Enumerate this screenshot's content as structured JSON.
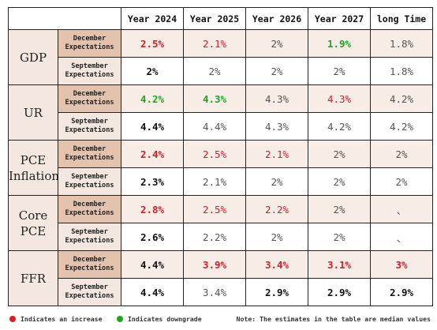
{
  "chart_data": {
    "type": "table",
    "columns": [
      "Year 2024",
      "Year 2025",
      "Year 2026",
      "Year 2027",
      "long Time"
    ],
    "groups": [
      {
        "name": "GDP",
        "rows": [
          {
            "label": "December Expectations",
            "kind": "dec",
            "cells": [
              {
                "text": "2.5%",
                "value": 2.5,
                "color": "red",
                "bold": true
              },
              {
                "text": "2.1%",
                "value": 2.1,
                "color": "red",
                "bold": false
              },
              {
                "text": "2%",
                "value": 2.0,
                "color": "gray",
                "bold": false
              },
              {
                "text": "1.9%",
                "value": 1.9,
                "color": "green",
                "bold": true
              },
              {
                "text": "1.8%",
                "value": 1.8,
                "color": "gray",
                "bold": false
              }
            ]
          },
          {
            "label": "September Expectations",
            "kind": "sep",
            "cells": [
              {
                "text": "2%",
                "value": 2.0,
                "color": "black",
                "bold": true
              },
              {
                "text": "2%",
                "value": 2.0,
                "color": "gray",
                "bold": false
              },
              {
                "text": "2%",
                "value": 2.0,
                "color": "gray",
                "bold": false
              },
              {
                "text": "2%",
                "value": 2.0,
                "color": "gray",
                "bold": false
              },
              {
                "text": "1.8%",
                "value": 1.8,
                "color": "gray",
                "bold": false
              }
            ]
          }
        ]
      },
      {
        "name": "UR",
        "rows": [
          {
            "label": "December Expectations",
            "kind": "dec",
            "cells": [
              {
                "text": "4.2%",
                "value": 4.2,
                "color": "green",
                "bold": true
              },
              {
                "text": "4.3%",
                "value": 4.3,
                "color": "green",
                "bold": true
              },
              {
                "text": "4.3%",
                "value": 4.3,
                "color": "gray",
                "bold": false
              },
              {
                "text": "4.3%",
                "value": 4.3,
                "color": "red",
                "bold": false
              },
              {
                "text": "4.2%",
                "value": 4.2,
                "color": "gray",
                "bold": false
              }
            ]
          },
          {
            "label": "September Expectations",
            "kind": "sep",
            "cells": [
              {
                "text": "4.4%",
                "value": 4.4,
                "color": "black",
                "bold": true
              },
              {
                "text": "4.4%",
                "value": 4.4,
                "color": "gray",
                "bold": false
              },
              {
                "text": "4.3%",
                "value": 4.3,
                "color": "gray",
                "bold": false
              },
              {
                "text": "4.2%",
                "value": 4.2,
                "color": "gray",
                "bold": false
              },
              {
                "text": "4.2%",
                "value": 4.2,
                "color": "gray",
                "bold": false
              }
            ]
          }
        ]
      },
      {
        "name": "PCE Inflation",
        "rows": [
          {
            "label": "December Expectations",
            "kind": "dec",
            "cells": [
              {
                "text": "2.4%",
                "value": 2.4,
                "color": "red",
                "bold": true
              },
              {
                "text": "2.5%",
                "value": 2.5,
                "color": "red",
                "bold": false
              },
              {
                "text": "2.1%",
                "value": 2.1,
                "color": "red",
                "bold": false
              },
              {
                "text": "2%",
                "value": 2.0,
                "color": "gray",
                "bold": false
              },
              {
                "text": "2%",
                "value": 2.0,
                "color": "gray",
                "bold": false
              }
            ]
          },
          {
            "label": "September Expectations",
            "kind": "sep",
            "cells": [
              {
                "text": "2.3%",
                "value": 2.3,
                "color": "black",
                "bold": true
              },
              {
                "text": "2.1%",
                "value": 2.1,
                "color": "gray",
                "bold": false
              },
              {
                "text": "2%",
                "value": 2.0,
                "color": "gray",
                "bold": false
              },
              {
                "text": "2%",
                "value": 2.0,
                "color": "gray",
                "bold": false
              },
              {
                "text": "2%",
                "value": 2.0,
                "color": "gray",
                "bold": false
              }
            ]
          }
        ]
      },
      {
        "name": "Core PCE",
        "rows": [
          {
            "label": "December Expectations",
            "kind": "dec",
            "cells": [
              {
                "text": "2.8%",
                "value": 2.8,
                "color": "red",
                "bold": true
              },
              {
                "text": "2.5%",
                "value": 2.5,
                "color": "red",
                "bold": false
              },
              {
                "text": "2.2%",
                "value": 2.2,
                "color": "red",
                "bold": false
              },
              {
                "text": "2%",
                "value": 2.0,
                "color": "gray",
                "bold": false
              },
              {
                "text": "、",
                "value": null,
                "color": "gray",
                "bold": false
              }
            ]
          },
          {
            "label": "September Expectations",
            "kind": "sep",
            "cells": [
              {
                "text": "2.6%",
                "value": 2.6,
                "color": "black",
                "bold": true
              },
              {
                "text": "2.2%",
                "value": 2.2,
                "color": "gray",
                "bold": false
              },
              {
                "text": "2%",
                "value": 2.0,
                "color": "gray",
                "bold": false
              },
              {
                "text": "2%",
                "value": 2.0,
                "color": "gray",
                "bold": false
              },
              {
                "text": "、",
                "value": null,
                "color": "gray",
                "bold": false
              }
            ]
          }
        ]
      },
      {
        "name": "FFR",
        "rows": [
          {
            "label": "December Expectations",
            "kind": "dec",
            "cells": [
              {
                "text": "4.4%",
                "value": 4.4,
                "color": "black",
                "bold": true
              },
              {
                "text": "3.9%",
                "value": 3.9,
                "color": "red",
                "bold": true
              },
              {
                "text": "3.4%",
                "value": 3.4,
                "color": "red",
                "bold": true
              },
              {
                "text": "3.1%",
                "value": 3.1,
                "color": "red",
                "bold": true
              },
              {
                "text": "3%",
                "value": 3.0,
                "color": "red",
                "bold": true
              }
            ]
          },
          {
            "label": "September Expectations",
            "kind": "sep",
            "cells": [
              {
                "text": "4.4%",
                "value": 4.4,
                "color": "black",
                "bold": true
              },
              {
                "text": "3.4%",
                "value": 3.4,
                "color": "gray",
                "bold": false
              },
              {
                "text": "2.9%",
                "value": 2.9,
                "color": "black",
                "bold": true
              },
              {
                "text": "2.9%",
                "value": 2.9,
                "color": "black",
                "bold": true
              },
              {
                "text": "2.9%",
                "value": 2.9,
                "color": "black",
                "bold": true
              }
            ]
          }
        ]
      }
    ]
  },
  "legend": {
    "increase": {
      "label": "Indicates an increase",
      "color": "#e01b1b"
    },
    "downgrade": {
      "label": "Indicates downgrade",
      "color": "#1fa61f"
    }
  },
  "note": "Note: The estimates in the table are median values",
  "colors": {
    "red": "#d0202a",
    "green": "#23a323",
    "black": "#111111",
    "gray": "#555555",
    "header_fill": "#e3c3ad",
    "group_fill": "#f4e7df"
  }
}
